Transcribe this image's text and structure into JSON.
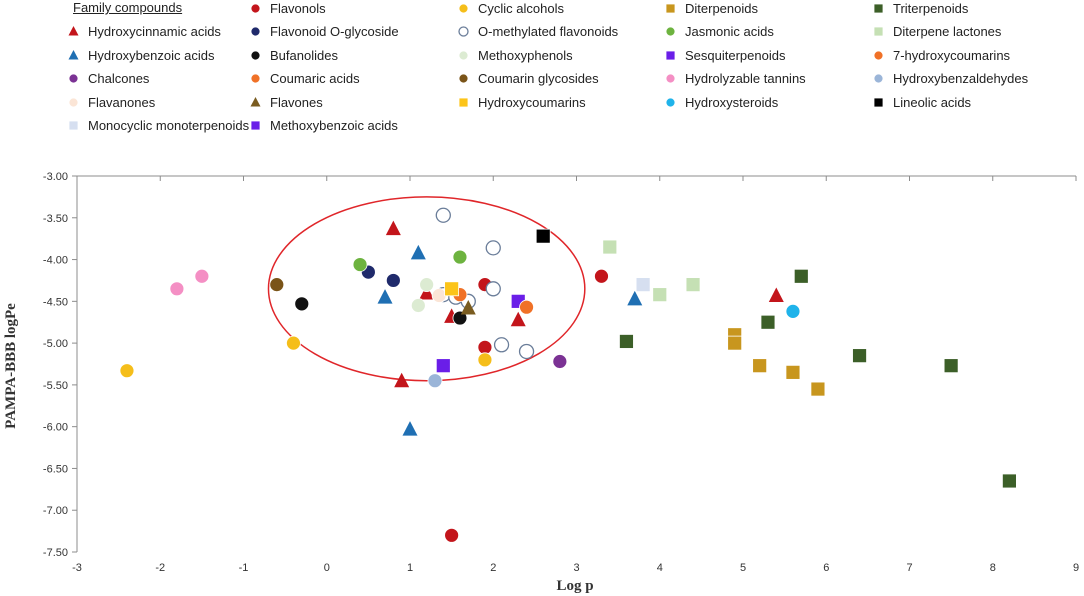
{
  "chart_data": {
    "type": "scatter",
    "title": "",
    "xlabel": "Log p",
    "ylabel": "PAMPA-BBB logPe",
    "xlim": [
      -3,
      9
    ],
    "ylim": [
      -7.5,
      -3.0
    ],
    "x_ticks": [
      -3,
      -2,
      -1,
      0,
      1,
      2,
      3,
      4,
      5,
      6,
      7,
      8,
      9
    ],
    "y_ticks": [
      -3.0,
      -3.5,
      -4.0,
      -4.5,
      -5.0,
      -5.5,
      -6.0,
      -6.5,
      -7.0,
      -7.5
    ],
    "grid": false,
    "legend_title": "Family compounds",
    "legend_placement": "top",
    "annotation": {
      "shape": "circle",
      "color": "#e0262a",
      "center": [
        1.2,
        -4.35
      ],
      "radius_x": 1.9,
      "radius_y": 1.1
    },
    "series": [
      {
        "name": "Flavonols",
        "marker": "circle",
        "color": "#c3151b",
        "points": [
          [
            1.9,
            -4.3
          ],
          [
            3.3,
            -4.2
          ],
          [
            1.9,
            -5.05
          ],
          [
            1.5,
            -7.3
          ]
        ]
      },
      {
        "name": "Cyclic alcohols",
        "marker": "circle",
        "color": "#f5be1a",
        "points": [
          [
            -2.4,
            -5.33
          ],
          [
            -0.4,
            -5.0
          ],
          [
            1.9,
            -5.2
          ]
        ]
      },
      {
        "name": "Diterpenoids",
        "marker": "square",
        "color": "#c8961e",
        "points": [
          [
            4.9,
            -4.9
          ],
          [
            4.9,
            -5.0
          ],
          [
            5.2,
            -5.27
          ],
          [
            5.6,
            -5.35
          ],
          [
            5.9,
            -5.55
          ]
        ]
      },
      {
        "name": "Triterpenoids",
        "marker": "square",
        "color": "#3c5f28",
        "points": [
          [
            5.7,
            -4.2
          ],
          [
            5.3,
            -4.75
          ],
          [
            3.6,
            -4.98
          ],
          [
            6.4,
            -5.15
          ],
          [
            7.5,
            -5.27
          ],
          [
            8.2,
            -6.65
          ]
        ]
      },
      {
        "name": "Hydroxycinnamic acids",
        "marker": "triangle",
        "color": "#c3151b",
        "points": [
          [
            0.8,
            -3.63
          ],
          [
            1.2,
            -4.4
          ],
          [
            1.5,
            -4.68
          ],
          [
            2.3,
            -4.72
          ],
          [
            5.4,
            -4.43
          ],
          [
            0.9,
            -5.45
          ]
        ]
      },
      {
        "name": "Flavonoid O-glycoside",
        "marker": "circle",
        "color": "#1f2a6b",
        "points": [
          [
            0.5,
            -4.15
          ],
          [
            0.8,
            -4.25
          ]
        ]
      },
      {
        "name": "O-methylated flavonoids",
        "marker": "open-circle",
        "color": "#6a7d99",
        "points": [
          [
            1.4,
            -3.47
          ],
          [
            2.0,
            -3.86
          ],
          [
            2.0,
            -4.35
          ],
          [
            2.1,
            -5.02
          ],
          [
            2.4,
            -5.1
          ],
          [
            1.4,
            -4.42
          ],
          [
            1.55,
            -4.45
          ],
          [
            1.7,
            -4.5
          ]
        ]
      },
      {
        "name": "Jasmonic acids",
        "marker": "circle",
        "color": "#6db33f",
        "points": [
          [
            0.4,
            -4.06
          ],
          [
            1.6,
            -3.97
          ]
        ]
      },
      {
        "name": "Diterpene lactones",
        "marker": "square",
        "color": "#c5e0b4",
        "points": [
          [
            3.4,
            -3.85
          ],
          [
            4.0,
            -4.42
          ],
          [
            4.4,
            -4.3
          ]
        ]
      },
      {
        "name": "Hydroxybenzoic acids",
        "marker": "triangle",
        "color": "#1f6fb3",
        "points": [
          [
            1.1,
            -3.92
          ],
          [
            0.7,
            -4.45
          ],
          [
            3.7,
            -4.47
          ],
          [
            1.0,
            -6.03
          ]
        ]
      },
      {
        "name": "Bufanolides",
        "marker": "circle",
        "color": "#111111",
        "points": [
          [
            -0.3,
            -4.53
          ],
          [
            1.6,
            -4.7
          ]
        ]
      },
      {
        "name": "Methoxyphenols",
        "marker": "circle",
        "color": "#dcebd2",
        "points": [
          [
            1.2,
            -4.3
          ],
          [
            1.1,
            -4.55
          ]
        ]
      },
      {
        "name": "Sesquiterpenoids",
        "marker": "square",
        "color": "#6a1ee8",
        "points": [
          [
            2.3,
            -4.5
          ]
        ]
      },
      {
        "name": "7-hydroxycoumarins",
        "marker": "circle",
        "color": "#f07127",
        "points": [
          [
            2.4,
            -4.57
          ]
        ]
      },
      {
        "name": "Chalcones",
        "marker": "circle",
        "color": "#7b3294",
        "points": [
          [
            2.8,
            -5.22
          ]
        ]
      },
      {
        "name": "Coumaric acids",
        "marker": "circle",
        "color": "#f07127",
        "points": [
          [
            1.6,
            -4.42
          ]
        ]
      },
      {
        "name": "Coumarin glycosides",
        "marker": "circle",
        "color": "#7a5418",
        "points": [
          [
            -0.6,
            -4.3
          ]
        ]
      },
      {
        "name": "Hydrolyzable tannins",
        "marker": "circle",
        "color": "#f48fc4",
        "points": [
          [
            -1.8,
            -4.35
          ],
          [
            -1.5,
            -4.2
          ]
        ]
      },
      {
        "name": "Hydroxybenzaldehydes",
        "marker": "circle",
        "color": "#9bb5d8",
        "points": [
          [
            1.3,
            -5.45
          ]
        ]
      },
      {
        "name": "Flavanones",
        "marker": "circle",
        "color": "#fbe5d6",
        "points": [
          [
            1.35,
            -4.43
          ]
        ]
      },
      {
        "name": "Flavones",
        "marker": "triangle",
        "color": "#7a5c20",
        "points": [
          [
            1.7,
            -4.58
          ]
        ]
      },
      {
        "name": "Hydroxycoumarins",
        "marker": "square",
        "color": "#fcc419",
        "points": [
          [
            1.5,
            -4.35
          ]
        ]
      },
      {
        "name": "Hydroxysteroids",
        "marker": "circle",
        "color": "#1fb3ea",
        "points": [
          [
            5.6,
            -4.62
          ]
        ]
      },
      {
        "name": "Lineolic acids",
        "marker": "square",
        "color": "#000000",
        "points": [
          [
            2.6,
            -3.72
          ]
        ]
      },
      {
        "name": "Monocyclic monoterpenoids",
        "marker": "square",
        "color": "#d6dff0",
        "points": [
          [
            3.8,
            -4.3
          ]
        ]
      },
      {
        "name": "Methoxybenzoic acids",
        "marker": "square",
        "color": "#6a1ee8",
        "points": [
          [
            1.4,
            -5.27
          ]
        ]
      }
    ]
  }
}
